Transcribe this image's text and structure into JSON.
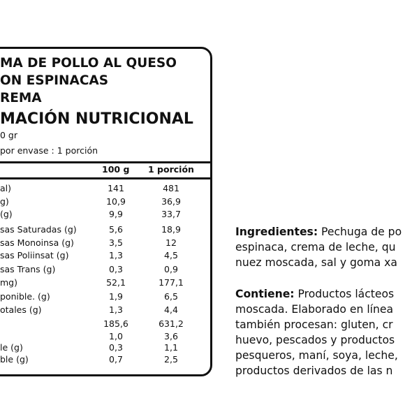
{
  "label": {
    "title_lines": [
      "MA DE POLLO AL QUESO",
      "ON ESPINACAS",
      "REMA"
    ],
    "heading": "MACIÓN NUTRICIONAL",
    "portion": "0 gr",
    "servings": "por envase : 1 porción",
    "columns": [
      "100 g",
      "1 porción"
    ],
    "rows": [
      {
        "label": "al)",
        "per100": "141",
        "portion": "481"
      },
      {
        "label": "g)",
        "per100": "10,9",
        "portion": "36,9"
      },
      {
        "label": "(g)",
        "per100": "9,9",
        "portion": "33,7"
      },
      {
        "label": "sas Saturadas (g)",
        "per100": "5,6",
        "portion": "18,9"
      },
      {
        "label": "sas Monoinsa (g)",
        "per100": "3,5",
        "portion": "12"
      },
      {
        "label": "sas Poliinsat (g)",
        "per100": "1,3",
        "portion": "4,5"
      },
      {
        "label": "sas Trans (g)",
        "per100": "0,3",
        "portion": "0,9"
      },
      {
        "label": "mg)",
        "per100": "52,1",
        "portion": "177,1"
      },
      {
        "label": "ponible. (g)",
        "per100": "1,9",
        "portion": "6,5"
      },
      {
        "label": "otales (g)",
        "per100": "1,3",
        "portion": "4,4"
      },
      {
        "label": "",
        "per100": "185,6",
        "portion": "631,2"
      },
      {
        "label": "",
        "per100": "1,0",
        "portion": "3,6"
      },
      {
        "label": "le (g)",
        "per100": "0,3",
        "portion": "1,1"
      },
      {
        "label": "ble (g)",
        "per100": "0,7",
        "portion": "2,5"
      }
    ]
  },
  "ingredients": {
    "heading": "Ingredientes:",
    "lines": [
      " Pechuga de po",
      "espinaca, crema de leche, qu",
      "nuez moscada, sal y goma xa"
    ]
  },
  "contains": {
    "heading": "Contiene:",
    "lines": [
      " Productos lácteos",
      "moscada. Elaborado en línea",
      "también procesan: gluten, cr",
      "huevo, pescados y productos",
      "pesqueros, maní, soya, leche,",
      "productos derivados de las n"
    ]
  }
}
